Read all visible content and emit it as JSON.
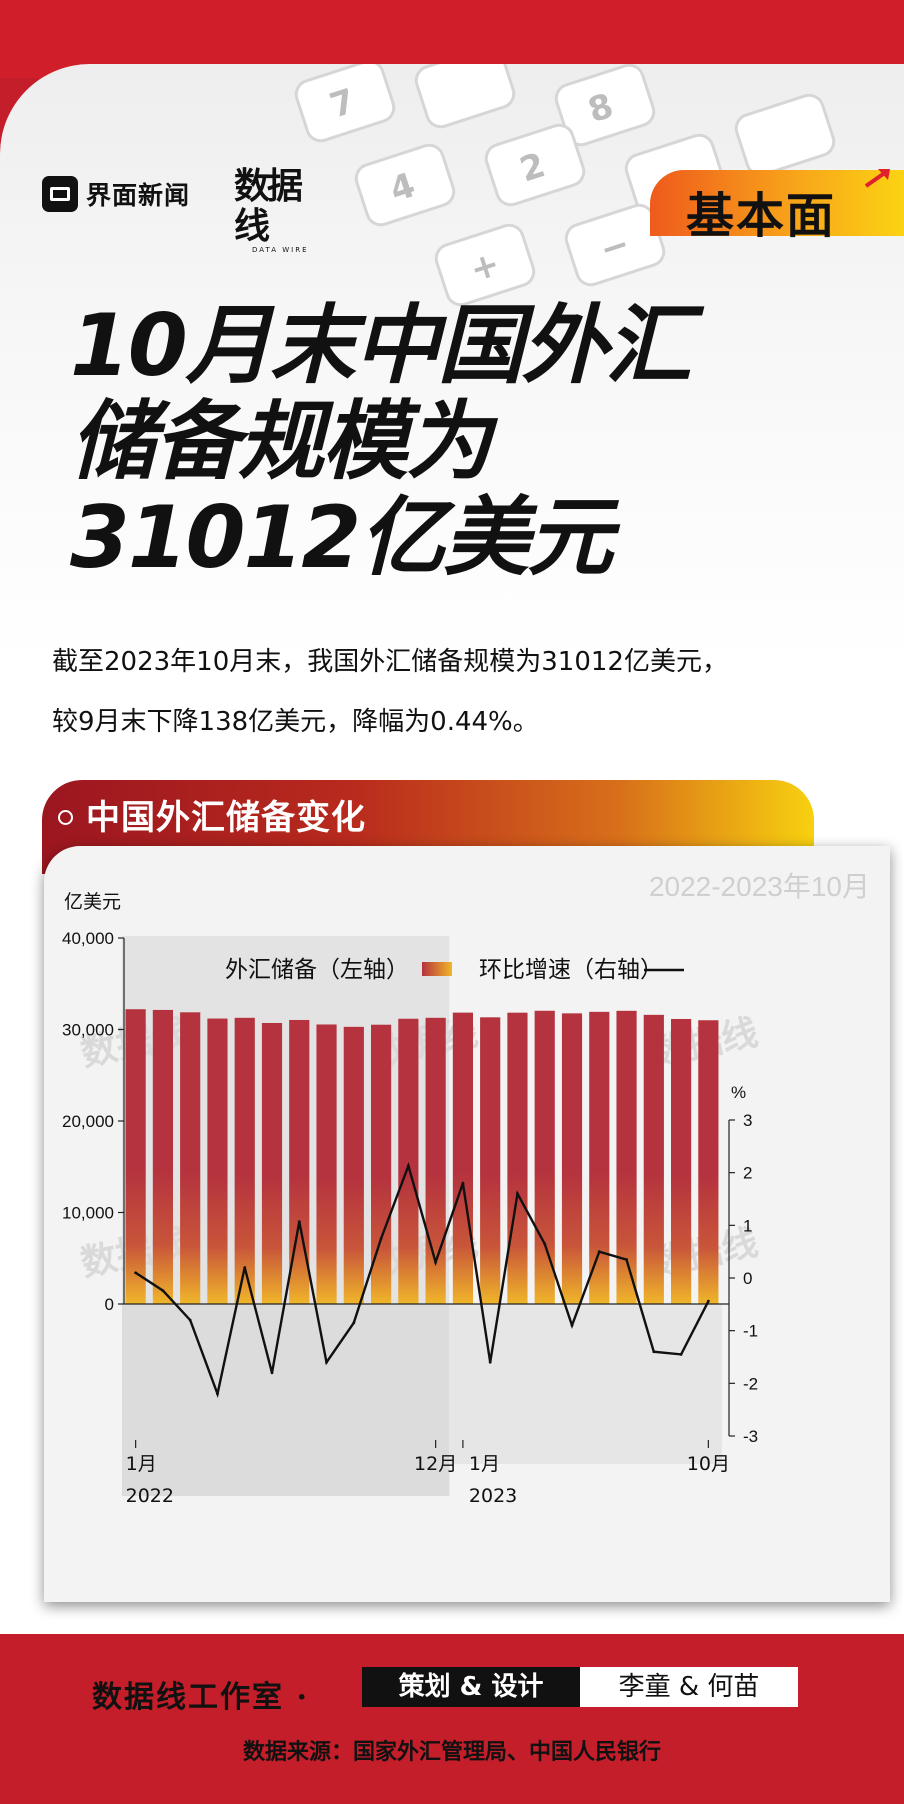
{
  "brand": {
    "logo_text": "界面新闻",
    "datawire_main": "数据线",
    "datawire_sub": "DATA WIRE",
    "badge": "基本面"
  },
  "title_lines": [
    "10月末中国外汇",
    "储备规模为",
    "31012亿美元"
  ],
  "lede_lines": [
    "截至2023年10月末，我国外汇储备规模为31012亿美元，",
    "较9月末下降138亿美元，降幅为0.44%。"
  ],
  "section_title": "中国外汇储备变化",
  "chart_data": {
    "type": "bar",
    "period_label": "2022-2023年10月",
    "left_unit": "亿美元",
    "right_unit": "%",
    "categories": [
      "2022-01",
      "2022-02",
      "2022-03",
      "2022-04",
      "2022-05",
      "2022-06",
      "2022-07",
      "2022-08",
      "2022-09",
      "2022-10",
      "2022-11",
      "2022-12",
      "2023-01",
      "2023-02",
      "2023-03",
      "2023-04",
      "2023-05",
      "2023-06",
      "2023-07",
      "2023-08",
      "2023-09",
      "2023-10"
    ],
    "x_tick_labels": [
      {
        "index": 0,
        "label": "1月",
        "year": "2022"
      },
      {
        "index": 11,
        "label": "12月",
        "year": ""
      },
      {
        "index": 12,
        "label": "1月",
        "year": "2023"
      },
      {
        "index": 21,
        "label": "10月",
        "year": ""
      }
    ],
    "left_axis": {
      "min": 0,
      "max": 40000,
      "ticks": [
        "0",
        "10,000",
        "20,000",
        "30,000",
        "40,000"
      ]
    },
    "right_axis": {
      "min": -3,
      "max": 3,
      "ticks": [
        "-3",
        "-2",
        "-1",
        "0",
        "1",
        "2",
        "3"
      ]
    },
    "series": [
      {
        "name": "外汇储备（左轴）",
        "kind": "bar",
        "axis": "left",
        "values": [
          32216,
          32138,
          31880,
          31197,
          31278,
          30713,
          31041,
          30549,
          30290,
          30524,
          31175,
          31277,
          31845,
          31332,
          31839,
          32048,
          31765,
          31930,
          32043,
          31601,
          31150,
          31012
        ]
      },
      {
        "name": "环比增速（右轴）",
        "kind": "line",
        "axis": "right",
        "values": [
          0.1,
          -0.24,
          -0.8,
          -2.2,
          0.2,
          -1.8,
          1.07,
          -1.6,
          -0.85,
          0.75,
          2.13,
          0.3,
          1.8,
          -1.6,
          1.6,
          0.65,
          -0.9,
          0.5,
          0.35,
          -1.4,
          -1.45,
          -0.44
        ]
      }
    ],
    "colors": {
      "bar_top": "#b5333e",
      "bar_mid": "#c8553a",
      "bar_bottom": "#f0b62a",
      "line": "#111111"
    }
  },
  "footer": {
    "studio": "数据线工作室 ·",
    "role": "策划 & 设计",
    "names": "李童 & 何苗",
    "source": "数据来源：国家外汇管理局、中国人民银行"
  }
}
